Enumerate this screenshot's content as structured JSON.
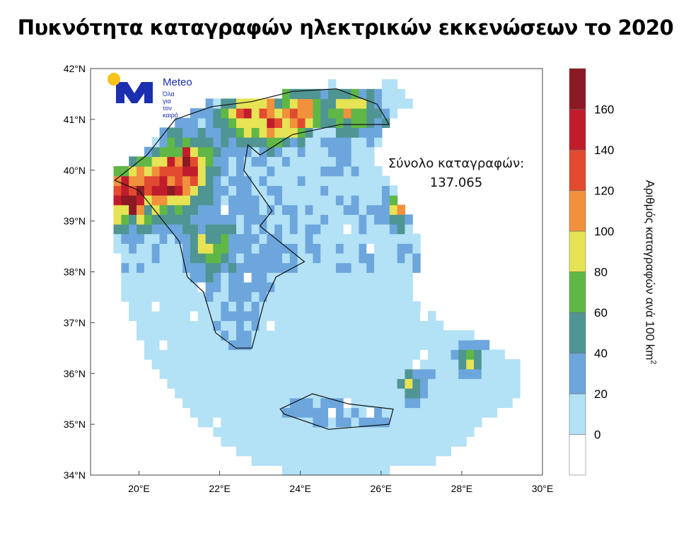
{
  "title": "Πυκνότητα καταγραφών ηλεκτρικών εκκενώσεων το 2020",
  "total": {
    "line1": "Σύνολο καταγραφών:",
    "line2": "137.065"
  },
  "logo": {
    "name": "Meteo",
    "tagline1": "Όλα για",
    "tagline2": "τον καιρό",
    "colors": {
      "sun": "#f7c21a",
      "mark": "#1b2fb0"
    }
  },
  "chart_data": {
    "type": "heatmap",
    "title": "Πυκνότητα καταγραφών ηλεκτρικών εκκενώσεων το 2020",
    "xlim": [
      18.8,
      30
    ],
    "ylim": [
      34,
      42
    ],
    "x_ticks": [
      "20°E",
      "22°E",
      "24°E",
      "26°E",
      "28°E",
      "30°E"
    ],
    "y_ticks": [
      "42°N",
      "41°N",
      "40°N",
      "39°N",
      "38°N",
      "37°N",
      "36°N",
      "35°N",
      "34°N"
    ],
    "colorbar": {
      "label": "Αριθμός καταγραφών ανά 100 km",
      "label_sup": "2",
      "tick_labels": [
        "0",
        "20",
        "40",
        "60",
        "80",
        "100",
        "120",
        "140",
        "160"
      ],
      "colors": [
        "#ffffff",
        "#b3e1f5",
        "#6ca6dc",
        "#4f9593",
        "#60b746",
        "#e6e355",
        "#f0913c",
        "#e24b2f",
        "#c01c2c",
        "#8b1a24"
      ]
    },
    "annotation": "Σύνολο καταγραφών: 137.065"
  }
}
